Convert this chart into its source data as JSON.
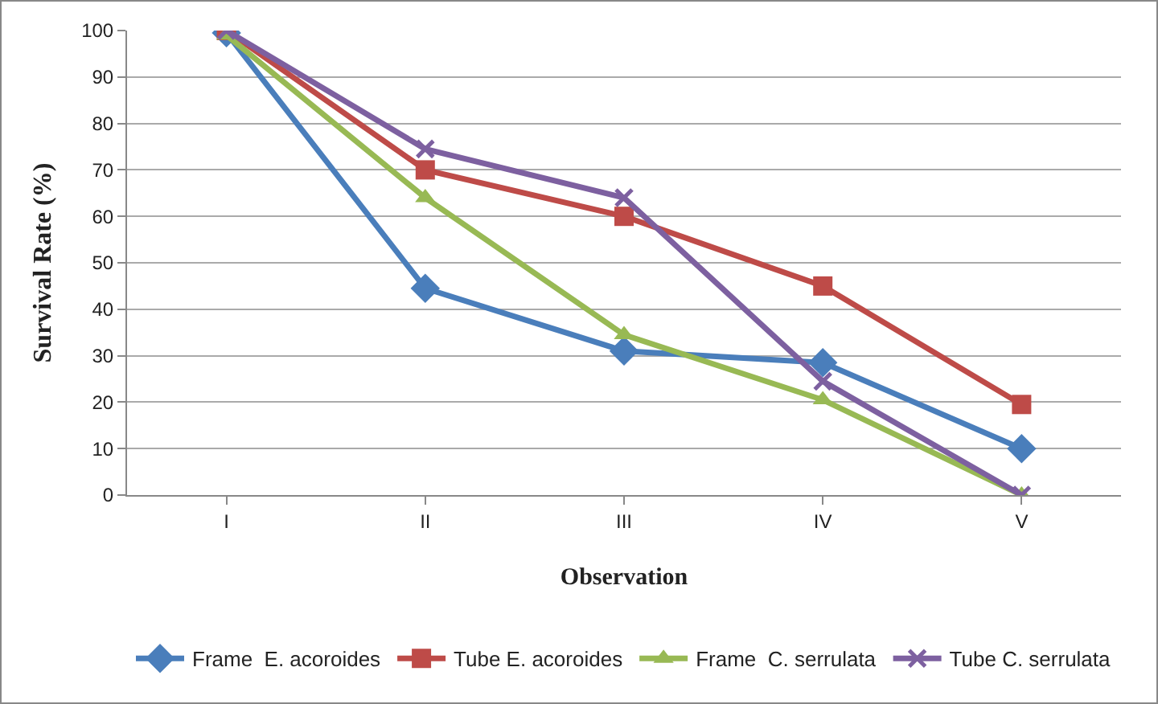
{
  "chart_data": {
    "type": "line",
    "xlabel": "Observation",
    "ylabel": "Survival Rate (%)",
    "categories": [
      "I",
      "II",
      "III",
      "IV",
      "V"
    ],
    "series": [
      {
        "name": "Frame  E. acoroides",
        "color": "#4a7ebb",
        "marker": "diamond",
        "values": [
          99.5,
          44.5,
          31,
          28.5,
          10
        ]
      },
      {
        "name": "Tube E. acoroides",
        "color": "#be4b48",
        "marker": "square",
        "values": [
          100,
          70,
          60,
          45,
          19.5
        ]
      },
      {
        "name": "Frame  C. serrulata",
        "color": "#98b954",
        "marker": "triangle",
        "values": [
          99,
          64,
          34.5,
          20.5,
          0
        ]
      },
      {
        "name": "Tube C. serrulata",
        "color": "#7d60a0",
        "marker": "cross",
        "values": [
          100,
          74.5,
          64,
          24.5,
          0
        ]
      }
    ],
    "ylim": [
      0,
      100
    ],
    "yticks": [
      0,
      10,
      20,
      30,
      40,
      50,
      60,
      70,
      80,
      90,
      100
    ],
    "grid": "y",
    "legend": "bottom",
    "line_style": "solid"
  }
}
